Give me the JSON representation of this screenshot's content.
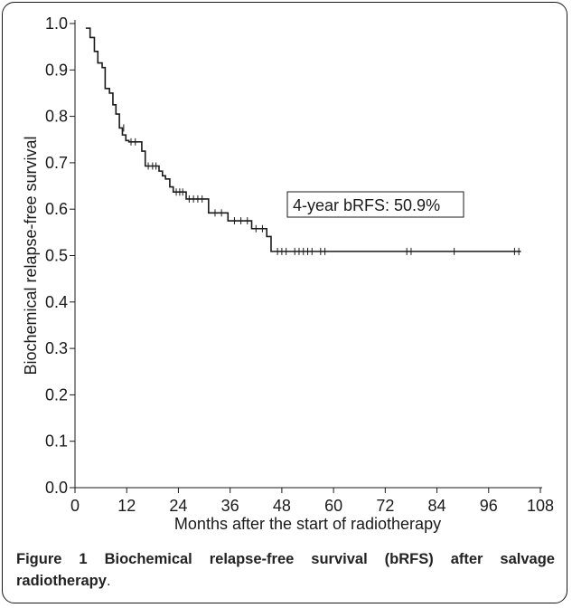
{
  "figure": {
    "label": "Figure 1",
    "title": "Biochemical relapse-free survival (bRFS) after salvage radiotherapy",
    "title_end": "."
  },
  "chart_data": {
    "type": "line",
    "subtype": "kaplan-meier",
    "title": "",
    "xlabel": "Months after the start of radiotherapy",
    "ylabel": "Biochemical relapse-free survival",
    "xlim": [
      0,
      108
    ],
    "ylim": [
      0.0,
      1.0
    ],
    "xticks": [
      0,
      12,
      24,
      36,
      48,
      60,
      72,
      84,
      96,
      108
    ],
    "yticks": [
      "0.0",
      "0.1",
      "0.2",
      "0.3",
      "0.4",
      "0.5",
      "0.6",
      "0.7",
      "0.8",
      "0.9",
      "1.0"
    ],
    "annotation": "4-year bRFS: 50.9%",
    "line_color": "#1a1a1a",
    "grid": false,
    "steps": [
      [
        2.5,
        0.99
      ],
      [
        3.5,
        0.97
      ],
      [
        4.5,
        0.94
      ],
      [
        5.3,
        0.915
      ],
      [
        6.3,
        0.905
      ],
      [
        7.0,
        0.86
      ],
      [
        8.0,
        0.85
      ],
      [
        8.8,
        0.825
      ],
      [
        9.5,
        0.805
      ],
      [
        10.3,
        0.775
      ],
      [
        11.0,
        0.76
      ],
      [
        11.8,
        0.748
      ],
      [
        12.5,
        0.745
      ],
      [
        15.5,
        0.725
      ],
      [
        16.3,
        0.693
      ],
      [
        19.5,
        0.682
      ],
      [
        20.3,
        0.672
      ],
      [
        21.0,
        0.665
      ],
      [
        22.0,
        0.648
      ],
      [
        22.8,
        0.637
      ],
      [
        25.8,
        0.622
      ],
      [
        31.0,
        0.592
      ],
      [
        35.5,
        0.575
      ],
      [
        41.0,
        0.558
      ],
      [
        44.5,
        0.541
      ],
      [
        45.5,
        0.509
      ],
      [
        103.5,
        0.509
      ]
    ],
    "censor_marks": [
      [
        11.3,
        0.775
      ],
      [
        13.0,
        0.745
      ],
      [
        14.0,
        0.745
      ],
      [
        17.0,
        0.693
      ],
      [
        18.0,
        0.693
      ],
      [
        18.8,
        0.693
      ],
      [
        23.5,
        0.637
      ],
      [
        24.3,
        0.637
      ],
      [
        25.0,
        0.637
      ],
      [
        26.5,
        0.622
      ],
      [
        27.5,
        0.622
      ],
      [
        28.5,
        0.622
      ],
      [
        29.5,
        0.622
      ],
      [
        32.5,
        0.592
      ],
      [
        34.0,
        0.592
      ],
      [
        37.0,
        0.575
      ],
      [
        38.5,
        0.575
      ],
      [
        40.0,
        0.575
      ],
      [
        42.0,
        0.558
      ],
      [
        43.5,
        0.558
      ],
      [
        47.0,
        0.509
      ],
      [
        48.0,
        0.509
      ],
      [
        49.0,
        0.509
      ],
      [
        51.0,
        0.509
      ],
      [
        52.0,
        0.509
      ],
      [
        53.0,
        0.509
      ],
      [
        54.0,
        0.509
      ],
      [
        55.0,
        0.509
      ],
      [
        57.0,
        0.509
      ],
      [
        58.0,
        0.509
      ],
      [
        77.0,
        0.509
      ],
      [
        78.0,
        0.509
      ],
      [
        88.0,
        0.509
      ],
      [
        102.0,
        0.509
      ],
      [
        103.0,
        0.509
      ]
    ]
  }
}
